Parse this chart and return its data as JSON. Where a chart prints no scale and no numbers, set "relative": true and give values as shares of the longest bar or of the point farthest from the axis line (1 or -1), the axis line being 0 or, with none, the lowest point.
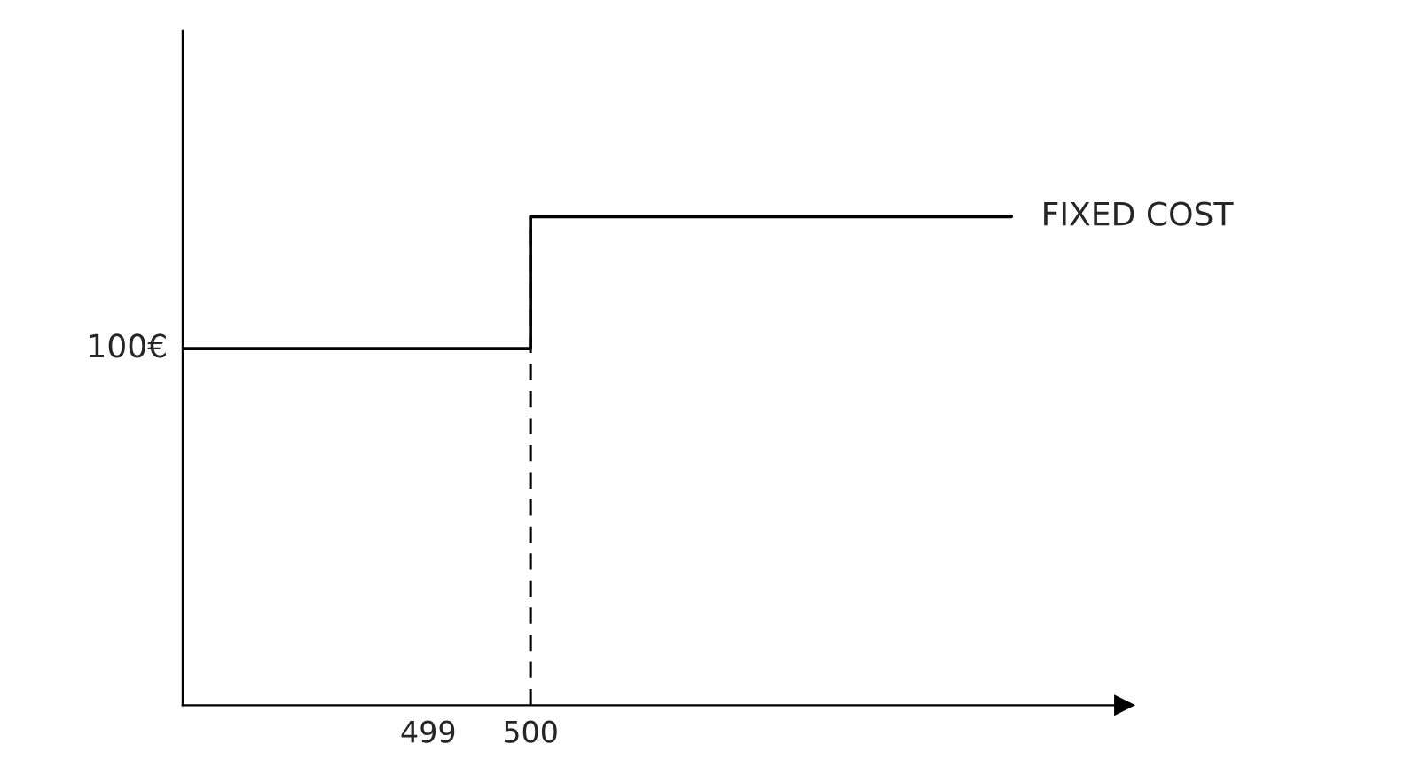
{
  "chart_data": {
    "type": "line",
    "relative": true,
    "series": [
      {
        "color": "#000000",
        "x": [
          496.6,
          500,
          500,
          504.7
        ],
        "values": [
          0.73,
          0.73,
          1,
          1
        ]
      }
    ],
    "xlim": [
      496.6,
      505.8
    ],
    "xticks": [
      499,
      500
    ],
    "ref_lines": [
      {
        "axis": "x",
        "value": 500,
        "line_style": "dashed",
        "color": "#000000"
      }
    ],
    "annotations": [
      {
        "text": "100€",
        "x": 496.6,
        "y": 0.73
      },
      {
        "text": "FIXED COST",
        "x": 504.7,
        "y": 1
      }
    ],
    "grid": false,
    "tick_labels": "x"
  }
}
